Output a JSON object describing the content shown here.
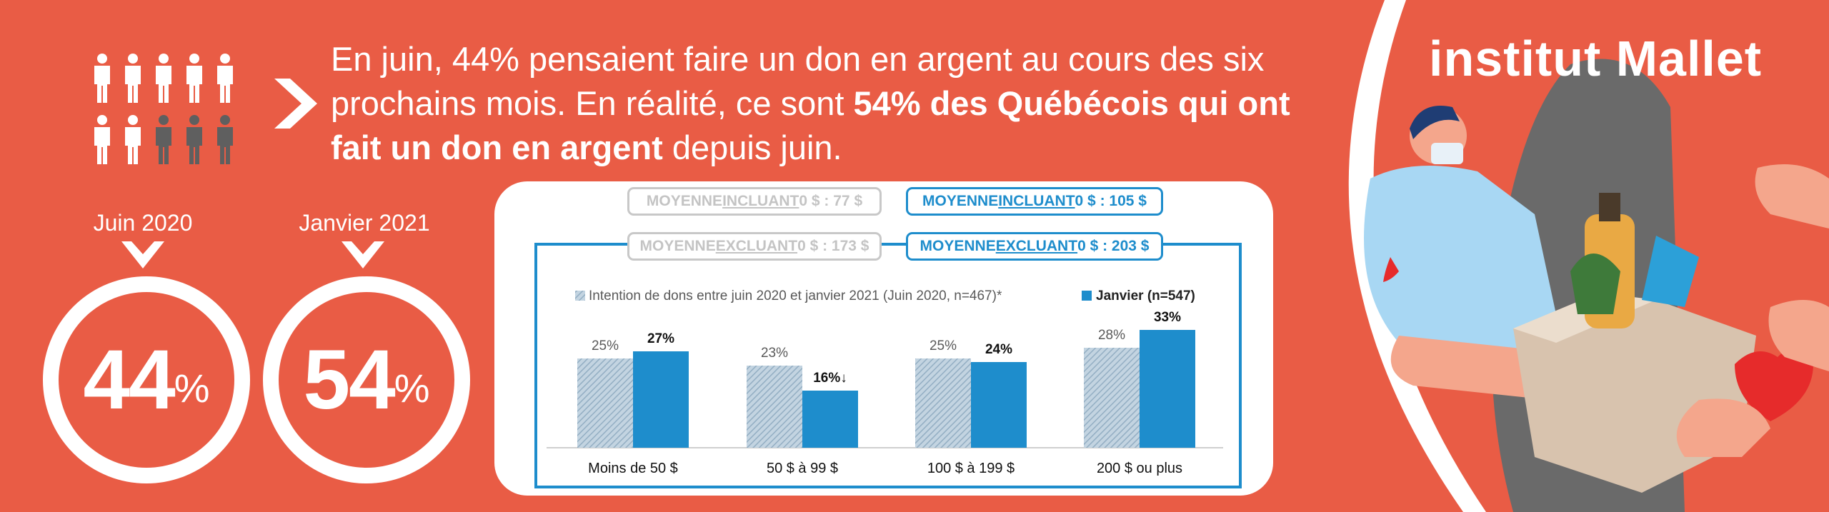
{
  "headline": {
    "part1": "En juin, 44% pensaient faire un don en argent au cours des six prochains mois. En réalité, ce sont ",
    "bold": "54% des Québécois qui ont fait un don en argent",
    "part2": " depuis juin."
  },
  "periods": [
    {
      "label": "Juin 2020",
      "value": "44",
      "unit": "%"
    },
    {
      "label": "Janvier 2021",
      "value": "54",
      "unit": "%"
    }
  ],
  "averages": {
    "grey": [
      {
        "pre": "MOYENNE ",
        "u": "INCLUANT",
        "post": " 0 $ : 77 $"
      },
      {
        "pre": "MOYENNE ",
        "u": "EXCLUANT",
        "post": " 0 $ : 173 $"
      }
    ],
    "blue": [
      {
        "pre": "MOYENNE ",
        "u": "INCLUANT",
        "post": " 0 $ : 105 $"
      },
      {
        "pre": "MOYENNE ",
        "u": "EXCLUANT",
        "post": " 0 $ : 203 $"
      }
    ]
  },
  "logo": "institut Mallet",
  "colors": {
    "background": "#E95C45",
    "blue": "#1E8DCC",
    "hatch": "#A9C3D6"
  },
  "chart_data": {
    "type": "bar",
    "categories": [
      "Moins de 50 $",
      "50 $ à 99 $",
      "100 $ à 199 $",
      "200 $ ou plus"
    ],
    "series": [
      {
        "name": "Intention de dons entre juin 2020 et janvier 2021 (Juin 2020, n=467)*",
        "values": [
          25,
          23,
          25,
          28
        ],
        "labels": [
          "25%",
          "23%",
          "25%",
          "28%"
        ]
      },
      {
        "name": "Janvier (n=547)",
        "values": [
          27,
          16,
          24,
          33
        ],
        "labels": [
          "27%",
          "16%↓",
          "24%",
          "33%"
        ]
      }
    ],
    "ylim": [
      0,
      35
    ]
  }
}
